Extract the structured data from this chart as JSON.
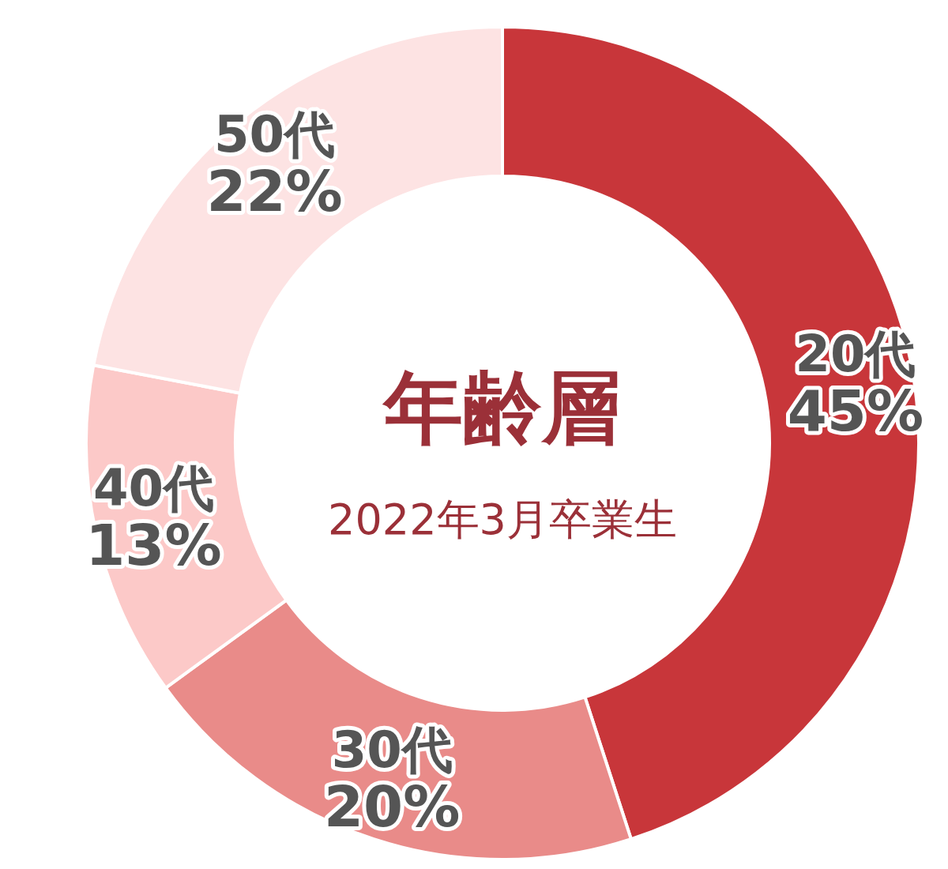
{
  "chart_data": {
    "type": "donut",
    "title": "年齢層",
    "subtitle": "2022年3月卒業生",
    "categories": [
      "20代",
      "30代",
      "40代",
      "50代"
    ],
    "values": [
      45,
      20,
      13,
      22
    ],
    "value_labels": [
      "45%",
      "20%",
      "13%",
      "22%"
    ],
    "colors": [
      "#c8363a",
      "#e98b89",
      "#fcc9c8",
      "#fde3e3"
    ]
  }
}
